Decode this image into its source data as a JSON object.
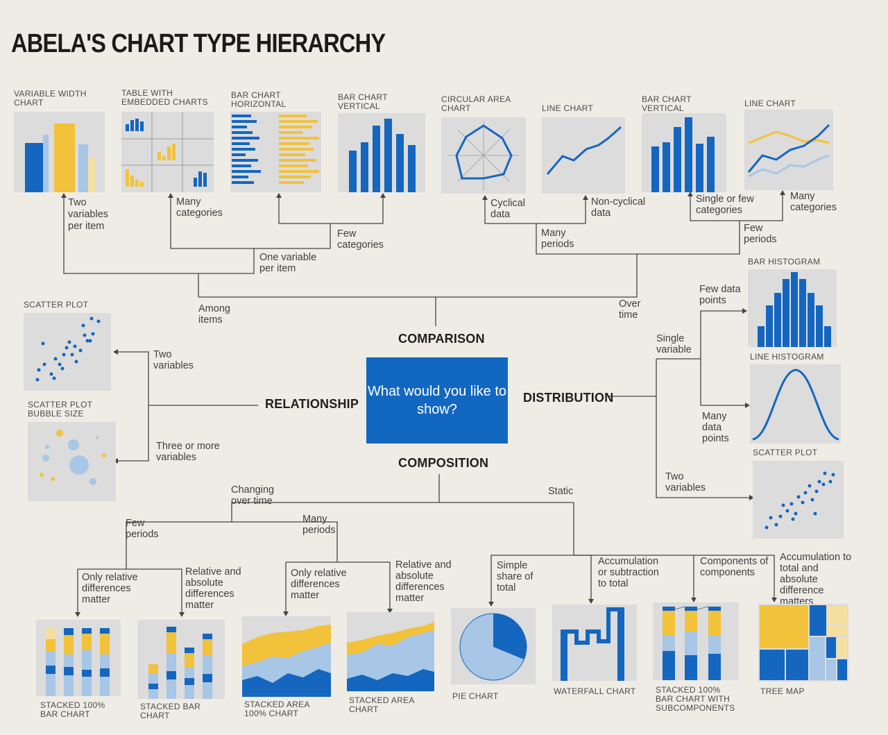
{
  "title": "ABELA'S CHART TYPE HIERARCHY",
  "center_question": "What would you like to show?",
  "colors": {
    "blue": "#1466bf",
    "yellow": "#f2c23a",
    "light_blue": "#a8c6e6",
    "pale_yellow": "#f4dfa0",
    "panel": "#dcdcdc",
    "page": "#efece6"
  },
  "categories": {
    "comparison": "COMPARISON",
    "relationship": "RELATIONSHIP",
    "distribution": "DISTRIBUTION",
    "composition": "COMPOSITION"
  },
  "comparison": {
    "among_items": "Among items",
    "over_time": "Over time",
    "two_vars_per_item": "Two variables per item",
    "one_var_per_item": "One variable per item",
    "many_categories": "Many categories",
    "few_categories": "Few categories",
    "cyclical": "Cyclical data",
    "non_cyclical": "Non-cyclical data",
    "many_periods": "Many periods",
    "few_periods": "Few periods",
    "single_or_few": "Single or few categories",
    "many_categories_2": "Many categories",
    "charts": [
      "VARIABLE WIDTH CHART",
      "TABLE WITH EMBEDDED CHARTS",
      "BAR CHART HORIZONTAL",
      "BAR CHART VERTICAL",
      "CIRCULAR AREA CHART",
      "LINE CHART",
      "BAR CHART VERTICAL",
      "LINE CHART"
    ]
  },
  "relationship": {
    "two_variables": "Two variables",
    "three_or_more": "Three or more variables",
    "charts": [
      "SCATTER PLOT",
      "SCATTER PLOT BUBBLE SIZE"
    ]
  },
  "distribution": {
    "single_variable": "Single variable",
    "few_data_points": "Few data points",
    "many_data_points": "Many data points",
    "two_variables": "Two variables",
    "charts": [
      "BAR HISTOGRAM",
      "LINE HISTOGRAM",
      "SCATTER PLOT"
    ]
  },
  "composition": {
    "changing_over_time": "Changing over time",
    "static": "Static",
    "few_periods": "Few periods",
    "many_periods": "Many periods",
    "only_relative_1": "Only relative differences matter",
    "relative_absolute_1": "Relative and absolute differences matter",
    "only_relative_2": "Only relative differences matter",
    "relative_absolute_2": "Relative and absolute differences matter",
    "simple_share": "Simple share of total",
    "accumulation_subtraction": "Accumulation or subtraction to total",
    "components": "Components of components",
    "accumulation_absolute": "Accumulation to total and absolute difference matters",
    "charts": [
      "STACKED 100% BAR CHART",
      "STACKED BAR CHART",
      "STACKED AREA 100% CHART",
      "STACKED AREA CHART",
      "PIE CHART",
      "WATERFALL CHART",
      "STACKED 100% BAR CHART WITH SUBCOMPONENTS",
      "TREE MAP"
    ]
  }
}
